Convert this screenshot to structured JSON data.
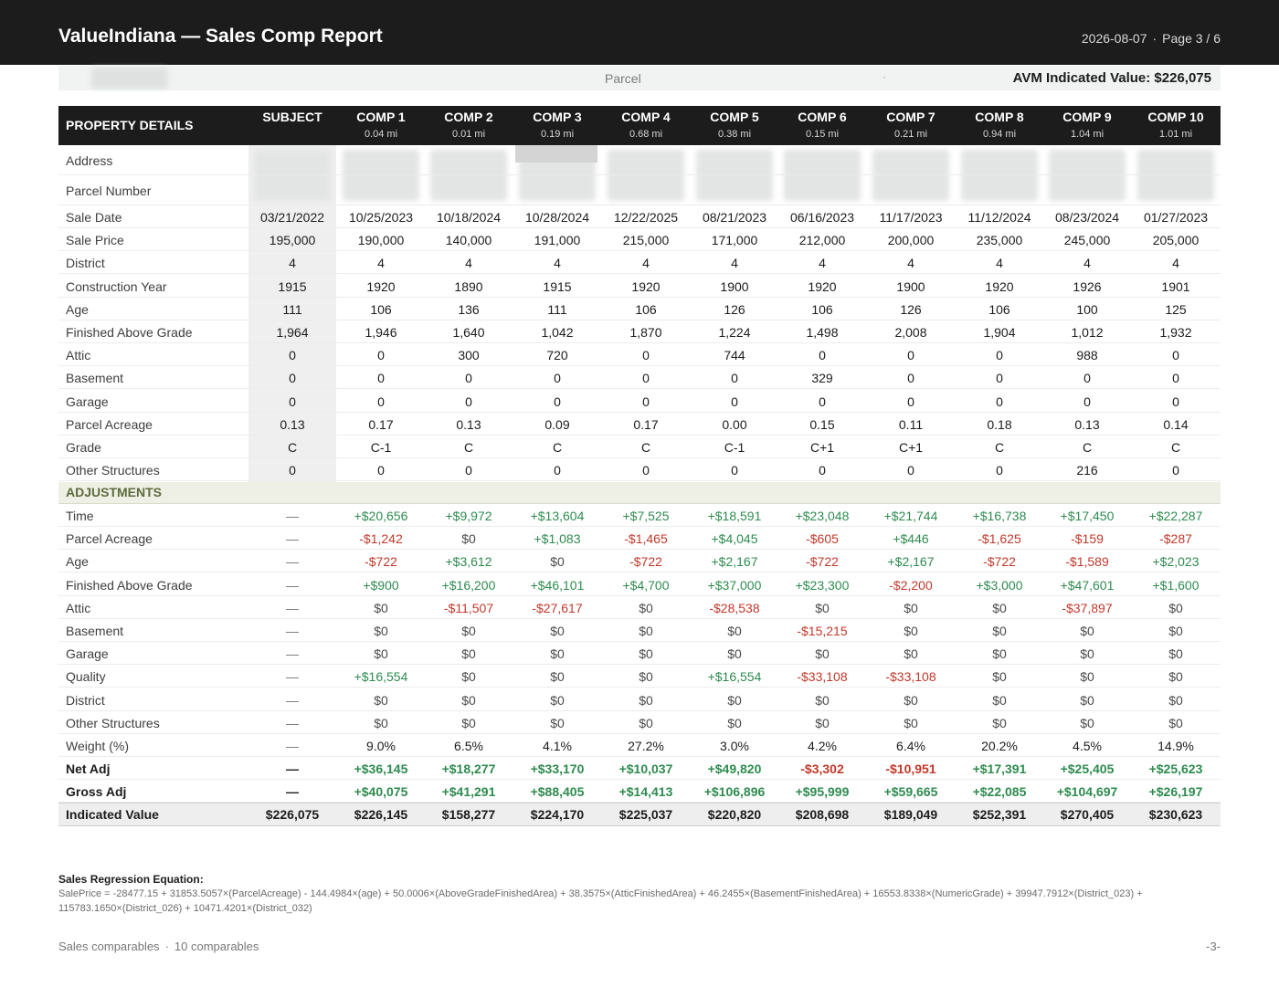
{
  "header": {
    "title": "ValueIndiana — Sales Comp Report",
    "date": "2026-08-07",
    "separator": "·",
    "page": "Page 3 / 6"
  },
  "parcel_bar": {
    "label": "Parcel",
    "dot": "·",
    "avm": "AVM Indicated Value: $226,075"
  },
  "table": {
    "section_label": "PROPERTY DETAILS",
    "columns": [
      {
        "name": "SUBJECT",
        "dist": ""
      },
      {
        "name": "COMP 1",
        "dist": "0.04 mi"
      },
      {
        "name": "COMP 2",
        "dist": "0.01 mi"
      },
      {
        "name": "COMP 3",
        "dist": "0.19 mi"
      },
      {
        "name": "COMP 4",
        "dist": "0.68 mi"
      },
      {
        "name": "COMP 5",
        "dist": "0.38 mi"
      },
      {
        "name": "COMP 6",
        "dist": "0.15 mi"
      },
      {
        "name": "COMP 7",
        "dist": "0.21 mi"
      },
      {
        "name": "COMP 8",
        "dist": "0.94 mi"
      },
      {
        "name": "COMP 9",
        "dist": "1.04 mi"
      },
      {
        "name": "COMP 10",
        "dist": "1.01 mi"
      }
    ],
    "blurred_rows": [
      {
        "label": "Address"
      },
      {
        "label": "Parcel Number"
      }
    ],
    "detail_rows": [
      {
        "label": "Sale Date",
        "values": [
          "03/21/2022",
          "10/25/2023",
          "10/18/2024",
          "10/28/2024",
          "12/22/2025",
          "08/21/2023",
          "06/16/2023",
          "11/17/2023",
          "11/12/2024",
          "08/23/2024",
          "01/27/2023"
        ]
      },
      {
        "label": "Sale Price",
        "values": [
          "195,000",
          "190,000",
          "140,000",
          "191,000",
          "215,000",
          "171,000",
          "212,000",
          "200,000",
          "235,000",
          "245,000",
          "205,000"
        ]
      },
      {
        "label": "District",
        "values": [
          "4",
          "4",
          "4",
          "4",
          "4",
          "4",
          "4",
          "4",
          "4",
          "4",
          "4"
        ]
      },
      {
        "label": "Construction Year",
        "values": [
          "1915",
          "1920",
          "1890",
          "1915",
          "1920",
          "1900",
          "1920",
          "1900",
          "1920",
          "1926",
          "1901"
        ]
      },
      {
        "label": "Age",
        "values": [
          "111",
          "106",
          "136",
          "111",
          "106",
          "126",
          "106",
          "126",
          "106",
          "100",
          "125"
        ]
      },
      {
        "label": "Finished Above Grade",
        "values": [
          "1,964",
          "1,946",
          "1,640",
          "1,042",
          "1,870",
          "1,224",
          "1,498",
          "2,008",
          "1,904",
          "1,012",
          "1,932"
        ]
      },
      {
        "label": "Attic",
        "values": [
          "0",
          "0",
          "300",
          "720",
          "0",
          "744",
          "0",
          "0",
          "0",
          "988",
          "0"
        ]
      },
      {
        "label": "Basement",
        "values": [
          "0",
          "0",
          "0",
          "0",
          "0",
          "0",
          "329",
          "0",
          "0",
          "0",
          "0"
        ]
      },
      {
        "label": "Garage",
        "values": [
          "0",
          "0",
          "0",
          "0",
          "0",
          "0",
          "0",
          "0",
          "0",
          "0",
          "0"
        ]
      },
      {
        "label": "Parcel Acreage",
        "values": [
          "0.13",
          "0.17",
          "0.13",
          "0.09",
          "0.17",
          "0.00",
          "0.15",
          "0.11",
          "0.18",
          "0.13",
          "0.14"
        ]
      },
      {
        "label": "Grade",
        "values": [
          "C",
          "C-1",
          "C",
          "C",
          "C",
          "C-1",
          "C+1",
          "C+1",
          "C",
          "C",
          "C"
        ]
      },
      {
        "label": "Other Structures",
        "values": [
          "0",
          "0",
          "0",
          "0",
          "0",
          "0",
          "0",
          "0",
          "0",
          "216",
          "0"
        ]
      }
    ],
    "adjustments_label": "ADJUSTMENTS",
    "adjustment_rows": [
      {
        "label": "Time",
        "values": [
          "—",
          "+$20,656",
          "+$9,972",
          "+$13,604",
          "+$7,525",
          "+$18,591",
          "+$23,048",
          "+$21,744",
          "+$16,738",
          "+$17,450",
          "+$22,287"
        ]
      },
      {
        "label": "Parcel Acreage",
        "values": [
          "—",
          "-$1,242",
          "$0",
          "+$1,083",
          "-$1,465",
          "+$4,045",
          "-$605",
          "+$446",
          "-$1,625",
          "-$159",
          "-$287"
        ]
      },
      {
        "label": "Age",
        "values": [
          "—",
          "-$722",
          "+$3,612",
          "$0",
          "-$722",
          "+$2,167",
          "-$722",
          "+$2,167",
          "-$722",
          "-$1,589",
          "+$2,023"
        ]
      },
      {
        "label": "Finished Above Grade",
        "values": [
          "—",
          "+$900",
          "+$16,200",
          "+$46,101",
          "+$4,700",
          "+$37,000",
          "+$23,300",
          "-$2,200",
          "+$3,000",
          "+$47,601",
          "+$1,600"
        ]
      },
      {
        "label": "Attic",
        "values": [
          "—",
          "$0",
          "-$11,507",
          "-$27,617",
          "$0",
          "-$28,538",
          "$0",
          "$0",
          "$0",
          "-$37,897",
          "$0"
        ]
      },
      {
        "label": "Basement",
        "values": [
          "—",
          "$0",
          "$0",
          "$0",
          "$0",
          "$0",
          "-$15,215",
          "$0",
          "$0",
          "$0",
          "$0"
        ]
      },
      {
        "label": "Garage",
        "values": [
          "—",
          "$0",
          "$0",
          "$0",
          "$0",
          "$0",
          "$0",
          "$0",
          "$0",
          "$0",
          "$0"
        ]
      },
      {
        "label": "Quality",
        "values": [
          "—",
          "+$16,554",
          "$0",
          "$0",
          "$0",
          "+$16,554",
          "-$33,108",
          "-$33,108",
          "$0",
          "$0",
          "$0"
        ]
      },
      {
        "label": "District",
        "values": [
          "—",
          "$0",
          "$0",
          "$0",
          "$0",
          "$0",
          "$0",
          "$0",
          "$0",
          "$0",
          "$0"
        ]
      },
      {
        "label": "Other Structures",
        "values": [
          "—",
          "$0",
          "$0",
          "$0",
          "$0",
          "$0",
          "$0",
          "$0",
          "$0",
          "$0",
          "$0"
        ]
      },
      {
        "label": "Weight (%)",
        "values": [
          "—",
          "9.0%",
          "6.5%",
          "4.1%",
          "27.2%",
          "3.0%",
          "4.2%",
          "6.4%",
          "20.2%",
          "4.5%",
          "14.9%"
        ]
      }
    ],
    "summary_rows": [
      {
        "label": "Net Adj",
        "values": [
          "—",
          "+$36,145",
          "+$18,277",
          "+$33,170",
          "+$10,037",
          "+$49,820",
          "-$3,302",
          "-$10,951",
          "+$17,391",
          "+$25,405",
          "+$25,623"
        ]
      },
      {
        "label": "Gross Adj",
        "values": [
          "—",
          "+$40,075",
          "+$41,291",
          "+$88,405",
          "+$14,413",
          "+$106,896",
          "+$95,999",
          "+$59,665",
          "+$22,085",
          "+$104,697",
          "+$26,197"
        ]
      }
    ],
    "indicated_row": {
      "label": "Indicated Value",
      "values": [
        "$226,075",
        "$226,145",
        "$158,277",
        "$224,170",
        "$225,037",
        "$220,820",
        "$208,698",
        "$189,049",
        "$252,391",
        "$270,405",
        "$230,623"
      ]
    }
  },
  "equation": {
    "title": "Sales Regression Equation:",
    "body": "SalePrice = -28477.15 + 31853.5057×(ParcelAcreage) - 144.4984×(age) + 50.0006×(AboveGradeFinishedArea) + 38.3575×(AtticFinishedArea) + 46.2455×(BasementFinishedArea) + 16553.8338×(NumericGrade) + 39947.7912×(District_023) + 115783.1650×(District_026) + 10471.4201×(District_032)"
  },
  "footer": {
    "left": "Sales comparables",
    "separator": "·",
    "count": "10 comparables",
    "page_num": "-3-"
  },
  "colors": {
    "header_bg": "#1c1c1c",
    "positive": "#2e8b4f",
    "negative": "#c0392b",
    "adjust_header": "#5d6b3c"
  }
}
